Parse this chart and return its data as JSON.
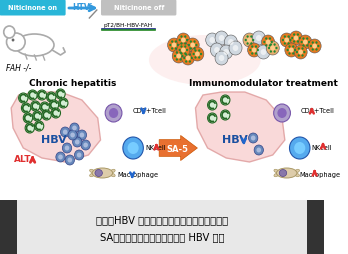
{
  "fig_width": 3.48,
  "fig_height": 2.54,
  "dpi": 100,
  "bg_color": "#ffffff",
  "caption_line1": "図１．HBV 持続感染による肝内の免疫動態と",
  "caption_line2": "SA－５の免疫賦活化による抗 HBV 効果",
  "caption_fontsize": 7.2,
  "top_bar_cyan_text": "Niticinone on",
  "top_bar_arrow_text": "HTVi",
  "top_bar_gray_text": "Niticinone off",
  "label_fah": "FAH -/-",
  "label_plasmid": "pT2/BH-HBV-FAH",
  "label_chronic": "Chronic hepatitis",
  "label_immuno": "Immunomodulator treatment",
  "label_hbv1": "HBV",
  "label_alt": "ALT",
  "label_cd8_1": "CD8+Tcell",
  "label_nk1": "NKcell",
  "label_macro1": "Macrophage",
  "label_sa5": "SA-5",
  "label_hbv2": "HBV",
  "label_cd8_2": "CD8+Tcell",
  "label_nk2": "NKcell",
  "label_macro2": "Macrophage",
  "cyan_color": "#29b6d8",
  "blue_arrow_color": "#3399dd",
  "blue_color": "#1a4fa0",
  "red_color": "#e03030",
  "orange_color": "#e87030",
  "gray_color": "#aaaaaa",
  "purple_light": "#9977bb",
  "purple_dark": "#5544aa",
  "green_dark": "#226622",
  "green_light": "#88cc88",
  "light_pink": "#f5d5d5",
  "nk_blue": "#3377cc",
  "caption_bg": "#e8e8e8"
}
